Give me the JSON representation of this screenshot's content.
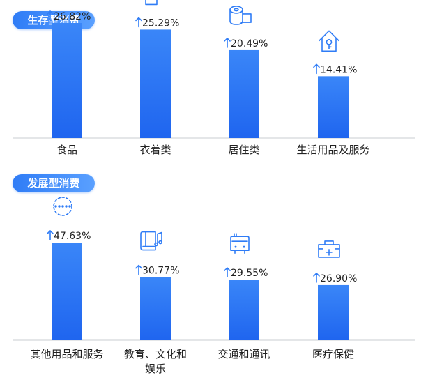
{
  "sections": [
    {
      "title": "生存型消费"
    },
    {
      "title": "发展型消费"
    }
  ],
  "colors": {
    "bar_top": "#2f7cf6",
    "bar_bottom": "#1e66f0",
    "accent": "#2f7cf6",
    "axis": "#c9ccd1",
    "text": "#222222"
  },
  "chart_data": [
    {
      "type": "bar",
      "title": "生存型消费",
      "categories": [
        "食品",
        "衣着类",
        "居住类",
        "生活用品及服务"
      ],
      "values": [
        26.82,
        25.29,
        20.49,
        14.41
      ],
      "value_labels": [
        "26.82%",
        "25.29%",
        "20.49%",
        "14.41%"
      ],
      "icons": [
        "muffin-icon",
        "tshirt-icon",
        "toilet-paper-icon",
        "house-key-icon"
      ],
      "unit": "%",
      "direction": "increase",
      "ylim": [
        0,
        50
      ],
      "grid": false
    },
    {
      "type": "bar",
      "title": "发展型消费",
      "categories": [
        "其他用品和服务",
        "教育、文化和娱乐",
        "交通和通讯",
        "医疗保健"
      ],
      "category_lines": [
        [
          "其他用品和服务"
        ],
        [
          "教育、文化和",
          "娱乐"
        ],
        [
          "交通和通讯"
        ],
        [
          "医疗保健"
        ]
      ],
      "values": [
        47.63,
        30.77,
        29.55,
        26.9
      ],
      "value_labels": [
        "47.63%",
        "30.77%",
        "29.55%",
        "26.90%"
      ],
      "icons": [
        "more-dots-icon",
        "book-music-icon",
        "bus-icon",
        "first-aid-kit-icon"
      ],
      "unit": "%",
      "direction": "increase",
      "ylim": [
        0,
        50
      ],
      "grid": false
    }
  ]
}
